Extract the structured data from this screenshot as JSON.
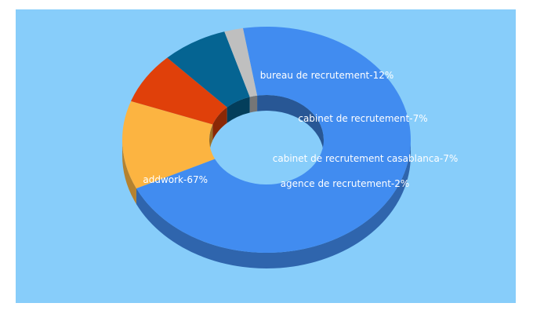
{
  "chart_data": {
    "type": "pie",
    "style": "3d-donut",
    "background": "#87cdfa",
    "slices": [
      {
        "label": "addwork-67%",
        "name": "addwork",
        "value": 67,
        "color": "#418cf0"
      },
      {
        "label": "bureau de recrutement-12%",
        "name": "bureau de recrutement",
        "value": 12,
        "color": "#fcb441"
      },
      {
        "label": "cabinet de recrutement-7%",
        "name": "cabinet de recrutement",
        "value": 7,
        "color": "#e0400a"
      },
      {
        "label": "cabinet de recrutement casablanca-7%",
        "name": "cabinet de recrutement casablanca",
        "value": 7,
        "color": "#056492"
      },
      {
        "label": "agence de recrutement-2%",
        "name": "agence de recrutement",
        "value": 2,
        "color": "#bfbfbf"
      }
    ]
  }
}
